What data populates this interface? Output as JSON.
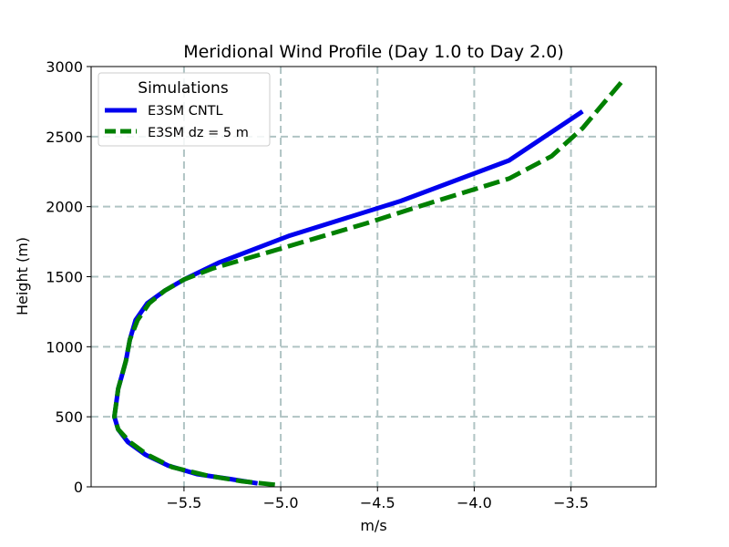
{
  "chart_data": {
    "type": "line",
    "title": "Meridional Wind Profile (Day 1.0 to Day 2.0)",
    "xlabel": "m/s",
    "ylabel": "Height (m)",
    "xlim": [
      -5.98,
      -3.06
    ],
    "ylim": [
      0,
      3000
    ],
    "xticks": [
      -5.5,
      -5.0,
      -4.5,
      -4.0,
      -3.5
    ],
    "xtick_labels": [
      "−5.5",
      "−5.0",
      "−4.5",
      "−4.0",
      "−3.5"
    ],
    "yticks": [
      0,
      500,
      1000,
      1500,
      2000,
      2500,
      3000
    ],
    "ytick_labels": [
      "0",
      "500",
      "1000",
      "1500",
      "2000",
      "2500",
      "3000"
    ],
    "grid": true,
    "legend": {
      "title": "Simulations",
      "placement": "top-left"
    },
    "series": [
      {
        "name": "E3SM CNTL",
        "color": "#0000ee",
        "style": "solid",
        "x": [
          -5.12,
          -5.26,
          -5.43,
          -5.58,
          -5.7,
          -5.79,
          -5.84,
          -5.86,
          -5.85,
          -5.84,
          -5.82,
          -5.8,
          -5.78,
          -5.75,
          -5.69,
          -5.6,
          -5.5,
          -5.32,
          -4.96,
          -4.38,
          -3.82,
          -3.44
        ],
        "y": [
          25,
          55,
          90,
          150,
          230,
          320,
          410,
          500,
          600,
          700,
          800,
          900,
          1050,
          1190,
          1310,
          1400,
          1480,
          1600,
          1790,
          2040,
          2330,
          2680
        ]
      },
      {
        "name": "E3SM dz = 5 m",
        "color": "#008000",
        "style": "dashed",
        "x": [
          -5.03,
          -5.2,
          -5.38,
          -5.56,
          -5.69,
          -5.78,
          -5.84,
          -5.86,
          -5.85,
          -5.84,
          -5.82,
          -5.8,
          -5.78,
          -5.74,
          -5.68,
          -5.6,
          -5.5,
          -5.35,
          -5.05,
          -4.56,
          -4.22,
          -3.82,
          -3.6,
          -3.44,
          -3.22
        ],
        "y": [
          15,
          40,
          80,
          140,
          230,
          320,
          410,
          500,
          600,
          700,
          800,
          900,
          1050,
          1190,
          1310,
          1400,
          1480,
          1560,
          1680,
          1880,
          2030,
          2200,
          2360,
          2560,
          2920
        ]
      }
    ]
  }
}
